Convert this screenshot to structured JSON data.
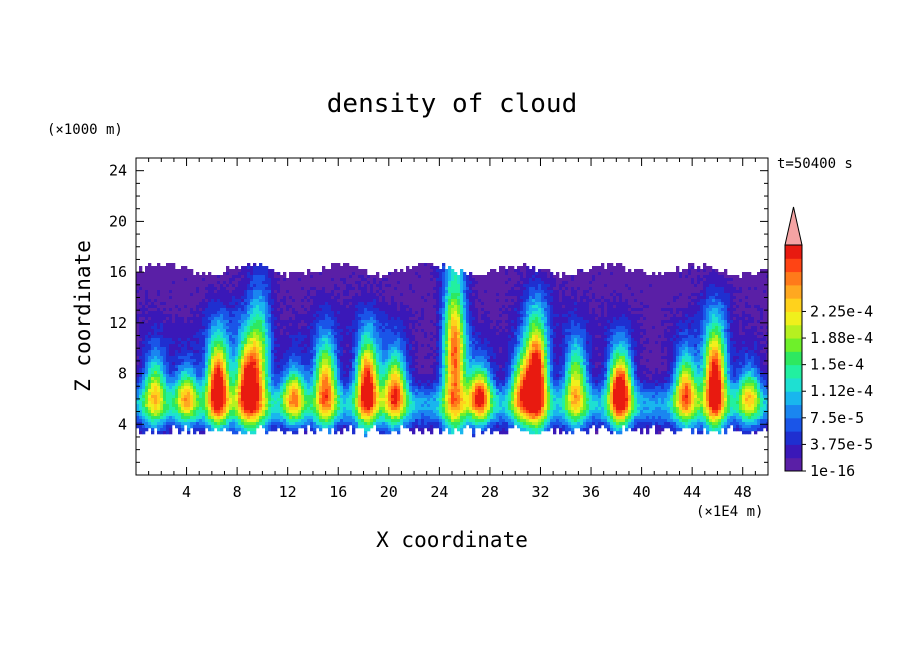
{
  "chart_data": {
    "type": "heatmap",
    "title": "density of cloud",
    "xlabel": "X coordinate",
    "ylabel": "Z coordinate",
    "x_unit": "(×1E4 m)",
    "y_unit": "(×1000 m)",
    "time_label": "t=50400 s",
    "xlim": [
      0,
      50
    ],
    "ylim": [
      0,
      25
    ],
    "x_ticks": [
      4,
      8,
      12,
      16,
      20,
      24,
      28,
      32,
      36,
      40,
      44,
      48
    ],
    "y_ticks": [
      4,
      8,
      12,
      16,
      20,
      24
    ],
    "colorbar": {
      "labels": [
        "1e-16",
        "3.75e-5",
        "7.5e-5",
        "1.12e-4",
        "1.5e-4",
        "1.88e-4",
        "2.25e-4"
      ],
      "colors": [
        "#5a1fa6",
        "#3a18b8",
        "#1f2fd0",
        "#1a55e8",
        "#1a86f0",
        "#19b6ee",
        "#1ee0d2",
        "#22f0a0",
        "#2ee860",
        "#6ef02a",
        "#b6f020",
        "#f0f01c",
        "#ffd21c",
        "#ffa820",
        "#ff7a1a",
        "#ff4414",
        "#e81a10"
      ],
      "over_color": "#f4a3a3"
    },
    "cloud_layer": {
      "base_z": 3.5,
      "top_z": 16.2,
      "convective_cores": [
        {
          "x": 1.5,
          "top": 9,
          "peak": 0.55
        },
        {
          "x": 4.0,
          "top": 8,
          "peak": 0.55
        },
        {
          "x": 6.5,
          "top": 10,
          "peak": 1.0
        },
        {
          "x": 8.8,
          "top": 10,
          "peak": 0.9
        },
        {
          "x": 9.8,
          "top": 13.5,
          "peak": 0.5
        },
        {
          "x": 12.5,
          "top": 8,
          "peak": 0.6
        },
        {
          "x": 15.0,
          "top": 10,
          "peak": 0.75
        },
        {
          "x": 18.3,
          "top": 10,
          "peak": 0.95
        },
        {
          "x": 20.5,
          "top": 9,
          "peak": 0.75
        },
        {
          "x": 25.2,
          "top": 15,
          "peak": 0.85
        },
        {
          "x": 27.2,
          "top": 8,
          "peak": 0.75
        },
        {
          "x": 30.5,
          "top": 9,
          "peak": 0.6
        },
        {
          "x": 31.7,
          "top": 11.5,
          "peak": 1.0
        },
        {
          "x": 34.8,
          "top": 10,
          "peak": 0.6
        },
        {
          "x": 38.3,
          "top": 9,
          "peak": 1.0
        },
        {
          "x": 43.5,
          "top": 9,
          "peak": 0.7
        },
        {
          "x": 45.8,
          "top": 11,
          "peak": 1.0
        },
        {
          "x": 48.5,
          "top": 8,
          "peak": 0.5
        }
      ]
    }
  }
}
